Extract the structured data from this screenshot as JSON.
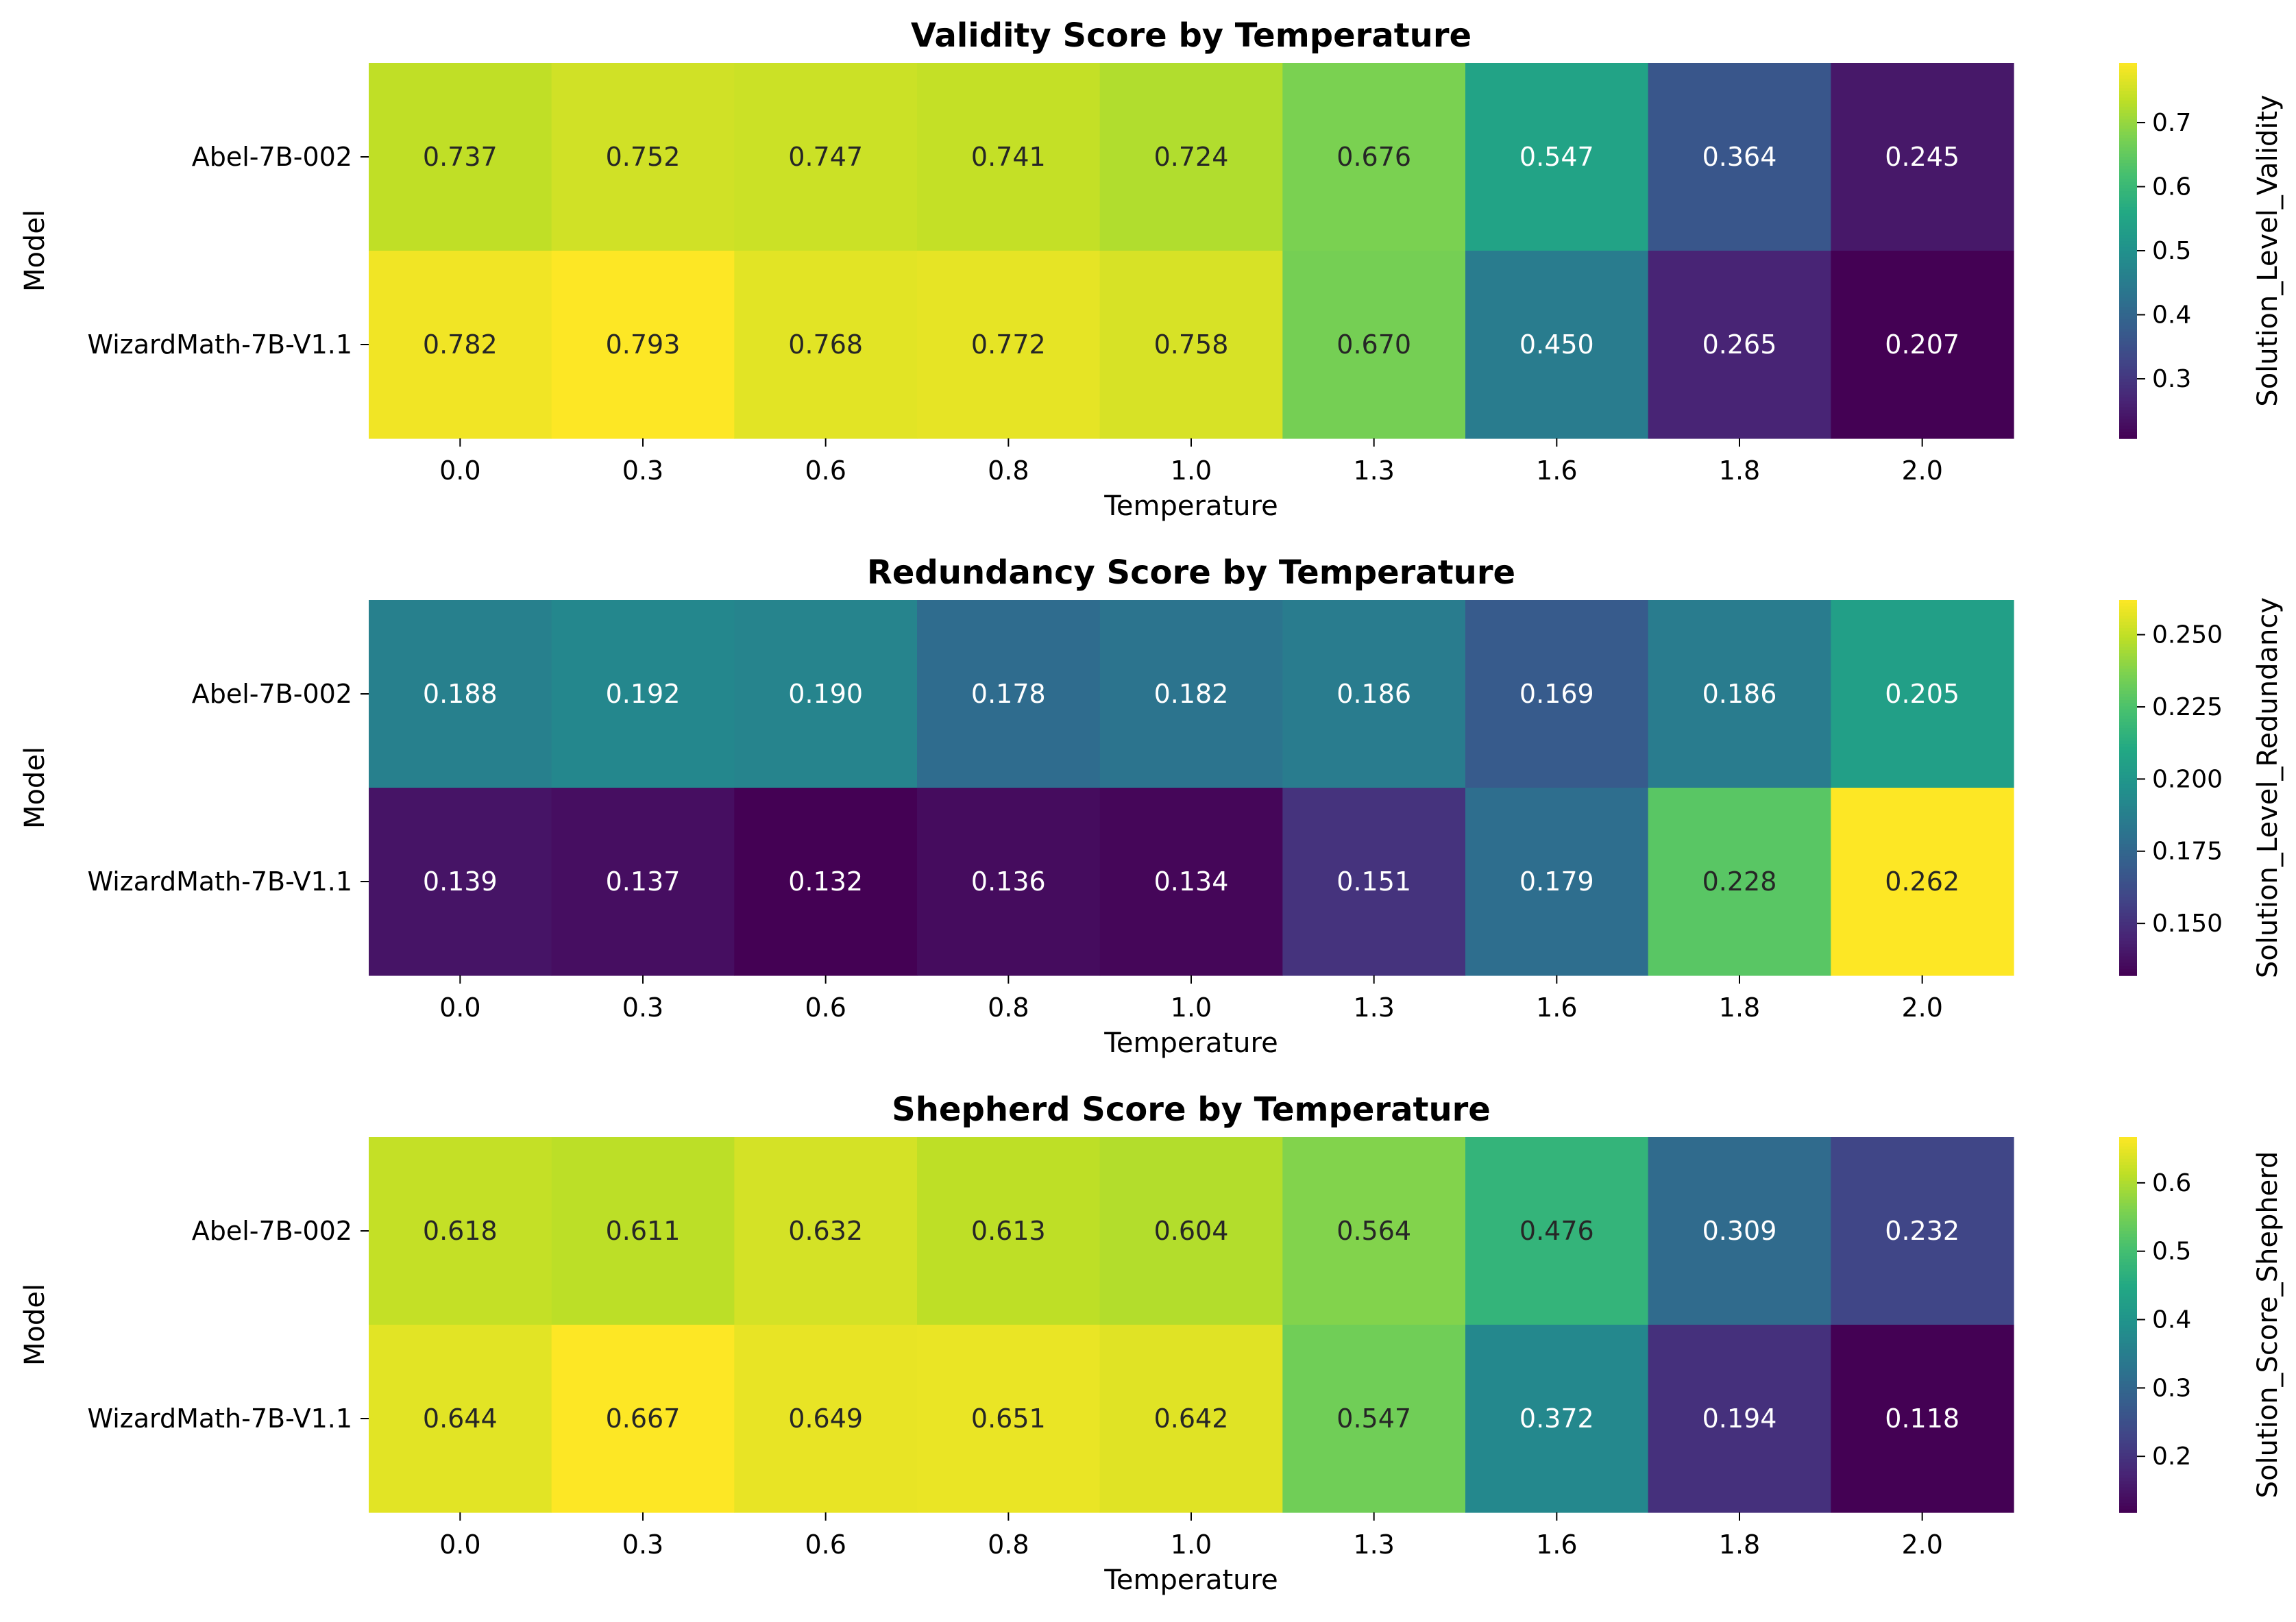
{
  "chart_data": [
    {
      "type": "heatmap",
      "title": "Validity Score by Temperature",
      "xlabel": "Temperature",
      "ylabel": "Model",
      "x": [
        "0.0",
        "0.3",
        "0.6",
        "0.8",
        "1.0",
        "1.3",
        "1.6",
        "1.8",
        "2.0"
      ],
      "y": [
        "Abel-7B-002",
        "WizardMath-7B-V1.1"
      ],
      "values": [
        [
          0.737,
          0.752,
          0.747,
          0.741,
          0.724,
          0.676,
          0.547,
          0.364,
          0.245
        ],
        [
          0.782,
          0.793,
          0.768,
          0.772,
          0.758,
          0.67,
          0.45,
          0.265,
          0.207
        ]
      ],
      "value_labels": [
        [
          "0.737",
          "0.752",
          "0.747",
          "0.741",
          "0.724",
          "0.676",
          "0.547",
          "0.364",
          "0.245"
        ],
        [
          "0.782",
          "0.793",
          "0.768",
          "0.772",
          "0.758",
          "0.670",
          "0.450",
          "0.265",
          "0.207"
        ]
      ],
      "colormap": "viridis",
      "colorbar_label": "Solution_Level_Validity",
      "colorbar_range": [
        0.207,
        0.793
      ],
      "colorbar_ticks": [
        "0.3",
        "0.4",
        "0.5",
        "0.6",
        "0.7"
      ]
    },
    {
      "type": "heatmap",
      "title": "Redundancy Score by Temperature",
      "xlabel": "Temperature",
      "ylabel": "Model",
      "x": [
        "0.0",
        "0.3",
        "0.6",
        "0.8",
        "1.0",
        "1.3",
        "1.6",
        "1.8",
        "2.0"
      ],
      "y": [
        "Abel-7B-002",
        "WizardMath-7B-V1.1"
      ],
      "values": [
        [
          0.188,
          0.192,
          0.19,
          0.178,
          0.182,
          0.186,
          0.169,
          0.186,
          0.205
        ],
        [
          0.139,
          0.137,
          0.132,
          0.136,
          0.134,
          0.151,
          0.179,
          0.228,
          0.262
        ]
      ],
      "value_labels": [
        [
          "0.188",
          "0.192",
          "0.190",
          "0.178",
          "0.182",
          "0.186",
          "0.169",
          "0.186",
          "0.205"
        ],
        [
          "0.139",
          "0.137",
          "0.132",
          "0.136",
          "0.134",
          "0.151",
          "0.179",
          "0.228",
          "0.262"
        ]
      ],
      "colormap": "viridis",
      "colorbar_label": "Solution_Level_Redundancy",
      "colorbar_range": [
        0.132,
        0.262
      ],
      "colorbar_ticks": [
        "0.150",
        "0.175",
        "0.200",
        "0.225",
        "0.250"
      ]
    },
    {
      "type": "heatmap",
      "title": "Shepherd Score by Temperature",
      "xlabel": "Temperature",
      "ylabel": "Model",
      "x": [
        "0.0",
        "0.3",
        "0.6",
        "0.8",
        "1.0",
        "1.3",
        "1.6",
        "1.8",
        "2.0"
      ],
      "y": [
        "Abel-7B-002",
        "WizardMath-7B-V1.1"
      ],
      "values": [
        [
          0.618,
          0.611,
          0.632,
          0.613,
          0.604,
          0.564,
          0.476,
          0.309,
          0.232
        ],
        [
          0.644,
          0.667,
          0.649,
          0.651,
          0.642,
          0.547,
          0.372,
          0.194,
          0.118
        ]
      ],
      "value_labels": [
        [
          "0.618",
          "0.611",
          "0.632",
          "0.613",
          "0.604",
          "0.564",
          "0.476",
          "0.309",
          "0.232"
        ],
        [
          "0.644",
          "0.667",
          "0.649",
          "0.651",
          "0.642",
          "0.547",
          "0.372",
          "0.194",
          "0.118"
        ]
      ],
      "colormap": "viridis",
      "colorbar_label": "Solution_Score_Shepherd",
      "colorbar_range": [
        0.118,
        0.667
      ],
      "colorbar_ticks": [
        "0.2",
        "0.3",
        "0.4",
        "0.5",
        "0.6"
      ]
    }
  ]
}
